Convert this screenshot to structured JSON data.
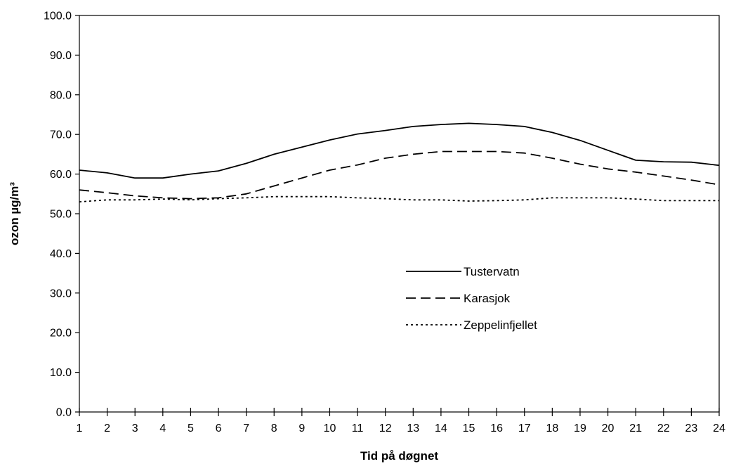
{
  "chart_data": {
    "type": "line",
    "title": "",
    "xlabel": "Tid på døgnet",
    "ylabel": "ozon µg/m³",
    "x": [
      1,
      2,
      3,
      4,
      5,
      6,
      7,
      8,
      9,
      10,
      11,
      12,
      13,
      14,
      15,
      16,
      17,
      18,
      19,
      20,
      21,
      22,
      23,
      24
    ],
    "ylim": [
      0,
      100
    ],
    "yticks": [
      "0.0",
      "10.0",
      "20.0",
      "30.0",
      "40.0",
      "50.0",
      "60.0",
      "70.0",
      "80.0",
      "90.0",
      "100.0"
    ],
    "xticks": [
      "1",
      "2",
      "3",
      "4",
      "5",
      "6",
      "7",
      "8",
      "9",
      "10",
      "11",
      "12",
      "13",
      "14",
      "15",
      "16",
      "17",
      "18",
      "19",
      "20",
      "21",
      "22",
      "23",
      "24"
    ],
    "grid": false,
    "legend_position": "center-right",
    "series": [
      {
        "name": "Tustervatn",
        "style": "solid",
        "color": "#000000",
        "values": [
          61.0,
          60.3,
          59.0,
          59.0,
          60.0,
          60.8,
          62.7,
          65.0,
          66.8,
          68.6,
          70.1,
          71.0,
          72.0,
          72.5,
          72.8,
          72.5,
          72.0,
          70.5,
          68.5,
          66.0,
          63.5,
          63.1,
          63.0,
          62.2
        ]
      },
      {
        "name": "Karasjok",
        "style": "dashed",
        "color": "#000000",
        "values": [
          56.0,
          55.3,
          54.5,
          54.0,
          53.8,
          54.0,
          55.0,
          57.0,
          59.0,
          61.0,
          62.3,
          64.0,
          65.0,
          65.7,
          65.7,
          65.7,
          65.3,
          64.0,
          62.5,
          61.3,
          60.5,
          59.5,
          58.5,
          57.3
        ]
      },
      {
        "name": "Zeppelinfjellet",
        "style": "dotted",
        "color": "#000000",
        "values": [
          53.0,
          53.5,
          53.5,
          53.7,
          53.5,
          53.8,
          54.0,
          54.3,
          54.3,
          54.3,
          54.0,
          53.8,
          53.5,
          53.5,
          53.2,
          53.3,
          53.5,
          54.0,
          54.0,
          54.0,
          53.7,
          53.3,
          53.3,
          53.3
        ]
      }
    ]
  }
}
